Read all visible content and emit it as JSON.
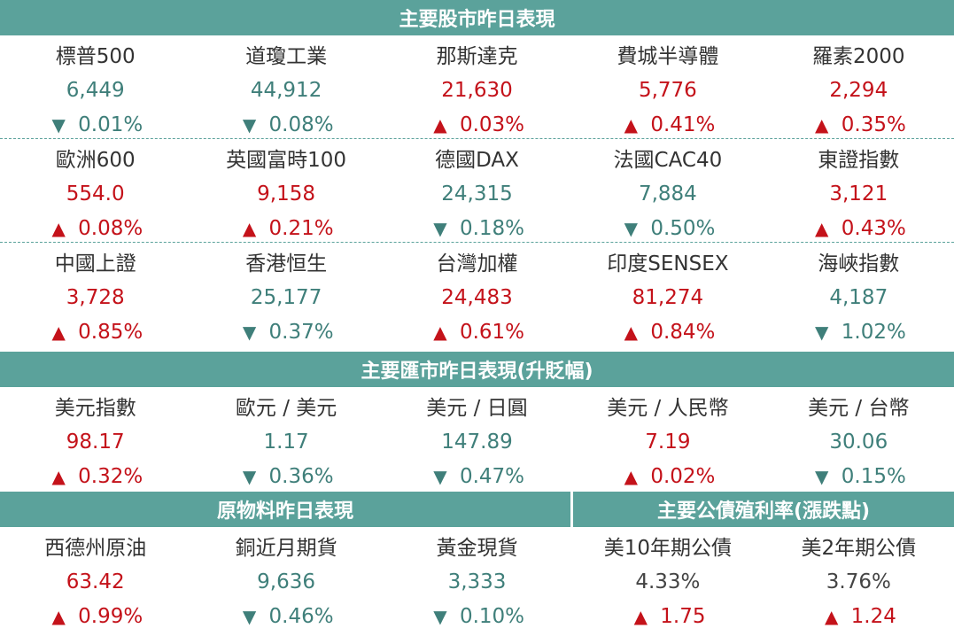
{
  "sections": {
    "stocks_title": "主要股市昨日表現",
    "fx_title": "主要匯市昨日表現(升貶幅)",
    "commodities_title": "原物料昨日表現",
    "bonds_title": "主要公債殖利率(漲跌點)"
  },
  "stocks_row1": [
    {
      "name": "標普500",
      "value": "6,449",
      "change": "0.01%",
      "dir": "down"
    },
    {
      "name": "道瓊工業",
      "value": "44,912",
      "change": "0.08%",
      "dir": "down"
    },
    {
      "name": "那斯達克",
      "value": "21,630",
      "change": "0.03%",
      "dir": "up"
    },
    {
      "name": "費城半導體",
      "value": "5,776",
      "change": "0.41%",
      "dir": "up"
    },
    {
      "name": "羅素2000",
      "value": "2,294",
      "change": "0.35%",
      "dir": "up"
    }
  ],
  "stocks_row2": [
    {
      "name": "歐洲600",
      "value": "554.0",
      "change": "0.08%",
      "dir": "up"
    },
    {
      "name": "英國富時100",
      "value": "9,158",
      "change": "0.21%",
      "dir": "up"
    },
    {
      "name": "德國DAX",
      "value": "24,315",
      "change": "0.18%",
      "dir": "down"
    },
    {
      "name": "法國CAC40",
      "value": "7,884",
      "change": "0.50%",
      "dir": "down"
    },
    {
      "name": "東證指數",
      "value": "3,121",
      "change": "0.43%",
      "dir": "up"
    }
  ],
  "stocks_row3": [
    {
      "name": "中國上證",
      "value": "3,728",
      "change": "0.85%",
      "dir": "up"
    },
    {
      "name": "香港恒生",
      "value": "25,177",
      "change": "0.37%",
      "dir": "down"
    },
    {
      "name": "台灣加權",
      "value": "24,483",
      "change": "0.61%",
      "dir": "up"
    },
    {
      "name": "印度SENSEX",
      "value": "81,274",
      "change": "0.84%",
      "dir": "up"
    },
    {
      "name": "海峽指數",
      "value": "4,187",
      "change": "1.02%",
      "dir": "down"
    }
  ],
  "fx_row": [
    {
      "name": "美元指數",
      "value": "98.17",
      "change": "0.32%",
      "dir": "up"
    },
    {
      "name": "歐元 / 美元",
      "value": "1.17",
      "change": "0.36%",
      "dir": "down"
    },
    {
      "name": "美元 / 日圓",
      "value": "147.89",
      "change": "0.47%",
      "dir": "down"
    },
    {
      "name": "美元 / 人民幣",
      "value": "7.19",
      "change": "0.02%",
      "dir": "up"
    },
    {
      "name": "美元 / 台幣",
      "value": "30.06",
      "change": "0.15%",
      "dir": "down"
    }
  ],
  "commodity_bond_row": [
    {
      "name": "西德州原油",
      "value": "63.42",
      "change": "0.99%",
      "dir": "up"
    },
    {
      "name": "銅近月期貨",
      "value": "9,636",
      "change": "0.46%",
      "dir": "down"
    },
    {
      "name": "黃金現貨",
      "value": "3,333",
      "change": "0.10%",
      "dir": "down"
    },
    {
      "name": "美10年期公債",
      "value": "4.33%",
      "change": "1.75",
      "dir": "up",
      "value_neutral": true
    },
    {
      "name": "美2年期公債",
      "value": "3.76%",
      "change": "1.24",
      "dir": "up",
      "value_neutral": true
    }
  ],
  "colors": {
    "header": "#5ba29b",
    "up": "#c4121a",
    "down": "#3f7f7a"
  },
  "icons": {
    "up": "triangle-up-icon",
    "down": "triangle-down-icon"
  }
}
